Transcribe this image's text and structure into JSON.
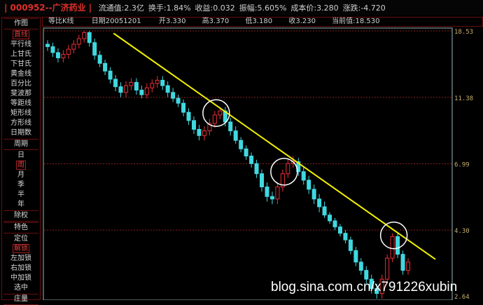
{
  "header": {
    "title": "| 000952--广济药业 |",
    "stats": [
      "流通值:2.3亿",
      "换手:1.84%",
      "收益:0.032",
      "振幅:5.605%",
      "成本价:3.280",
      "涨跌:-4.720"
    ]
  },
  "infobar": {
    "mode": "等比K线",
    "date": "日期20051201",
    "open": "开3.330",
    "high": "高3.370",
    "low": "低3.180",
    "close": "收3.230",
    "current": "当前值:18.530"
  },
  "sidebar": {
    "items": [
      {
        "label": "作图",
        "type": "hdr"
      },
      {
        "label": "直线",
        "type": "sel"
      },
      {
        "label": "平行线"
      },
      {
        "label": "上甘氏"
      },
      {
        "label": "下甘氏"
      },
      {
        "label": "黄金线"
      },
      {
        "label": "百分比"
      },
      {
        "label": "斐波那"
      },
      {
        "label": "等距线"
      },
      {
        "label": "矩形线"
      },
      {
        "label": "方形线"
      },
      {
        "label": "日期数"
      },
      {
        "label": "周期",
        "type": "hdr"
      },
      {
        "label": "日"
      },
      {
        "label": "周",
        "type": "sel"
      },
      {
        "label": "月"
      },
      {
        "label": "季"
      },
      {
        "label": "半"
      },
      {
        "label": "年"
      },
      {
        "label": "除权",
        "type": "hdr"
      },
      {
        "label": "特色",
        "type": "hdr"
      },
      {
        "label": "定位"
      },
      {
        "label": "解锁",
        "type": "sel"
      },
      {
        "label": "左加锁"
      },
      {
        "label": "右加锁"
      },
      {
        "label": "中加锁"
      },
      {
        "label": "选中"
      },
      {
        "label": "庄量",
        "type": "hdr"
      }
    ]
  },
  "chart_data": {
    "type": "candlestick",
    "scale": "log",
    "y_ticks": [
      "18.53",
      "11.38",
      "6.99",
      "4.30",
      "2.64"
    ],
    "ylim": [
      2.64,
      18.53
    ],
    "colors": {
      "up": "#e8303a",
      "down": "#40d8e0",
      "trendline": "#f0f000",
      "grid": "#8a2020",
      "axis": "#9ab8b8"
    },
    "ohlc": [
      [
        16.8,
        17.3,
        16.0,
        16.5
      ],
      [
        16.5,
        17.0,
        15.3,
        15.8
      ],
      [
        15.8,
        16.3,
        14.7,
        15.2
      ],
      [
        15.2,
        16.1,
        14.7,
        15.6
      ],
      [
        15.6,
        16.7,
        15.1,
        16.2
      ],
      [
        16.2,
        17.3,
        15.7,
        16.8
      ],
      [
        16.8,
        18.0,
        16.3,
        17.5
      ],
      [
        17.5,
        18.5,
        17.0,
        18.3
      ],
      [
        18.3,
        18.5,
        16.5,
        17.0
      ],
      [
        17.0,
        17.5,
        15.0,
        15.5
      ],
      [
        15.5,
        16.0,
        14.2,
        14.6
      ],
      [
        14.6,
        15.0,
        13.4,
        13.8
      ],
      [
        13.8,
        14.2,
        12.6,
        13.0
      ],
      [
        13.0,
        13.4,
        11.9,
        12.3
      ],
      [
        12.3,
        12.7,
        11.4,
        11.8
      ],
      [
        11.8,
        12.8,
        11.4,
        12.4
      ],
      [
        12.4,
        13.1,
        12.0,
        12.7
      ],
      [
        12.7,
        13.1,
        11.6,
        12.0
      ],
      [
        12.0,
        12.4,
        11.3,
        11.6
      ],
      [
        11.6,
        12.6,
        11.3,
        12.2
      ],
      [
        12.2,
        13.0,
        11.8,
        12.6
      ],
      [
        12.6,
        13.3,
        12.2,
        12.9
      ],
      [
        12.9,
        13.3,
        12.0,
        12.4
      ],
      [
        12.4,
        12.8,
        11.4,
        11.8
      ],
      [
        11.8,
        12.2,
        11.0,
        11.3
      ],
      [
        11.3,
        11.6,
        10.6,
        10.9
      ],
      [
        10.9,
        11.2,
        9.9,
        10.2
      ],
      [
        10.2,
        10.5,
        9.3,
        9.6
      ],
      [
        9.6,
        9.9,
        8.7,
        9.0
      ],
      [
        9.0,
        9.3,
        8.3,
        8.6
      ],
      [
        8.6,
        9.2,
        8.3,
        8.9
      ],
      [
        8.9,
        9.7,
        8.6,
        9.4
      ],
      [
        9.4,
        10.3,
        9.1,
        10.0
      ],
      [
        10.0,
        10.6,
        9.7,
        10.3
      ],
      [
        10.3,
        10.6,
        9.2,
        9.5
      ],
      [
        9.5,
        9.8,
        8.6,
        8.9
      ],
      [
        8.9,
        9.2,
        8.1,
        8.3
      ],
      [
        8.3,
        8.5,
        7.6,
        7.8
      ],
      [
        7.8,
        8.0,
        7.2,
        7.4
      ],
      [
        7.4,
        7.6,
        6.8,
        7.0
      ],
      [
        7.0,
        7.2,
        6.3,
        6.5
      ],
      [
        6.5,
        6.7,
        5.7,
        5.9
      ],
      [
        5.9,
        6.1,
        5.3,
        5.5
      ],
      [
        5.5,
        5.7,
        5.2,
        5.4
      ],
      [
        5.4,
        6.1,
        5.2,
        5.9
      ],
      [
        5.9,
        6.7,
        5.7,
        6.5
      ],
      [
        6.5,
        7.2,
        6.3,
        7.0
      ],
      [
        7.0,
        7.4,
        6.8,
        7.1
      ],
      [
        7.1,
        7.3,
        6.4,
        6.6
      ],
      [
        6.6,
        6.8,
        6.0,
        6.2
      ],
      [
        6.2,
        6.4,
        5.6,
        5.8
      ],
      [
        5.8,
        6.0,
        5.2,
        5.4
      ],
      [
        5.4,
        5.6,
        4.9,
        5.1
      ],
      [
        5.1,
        5.3,
        4.7,
        4.8
      ],
      [
        4.8,
        4.9,
        4.5,
        4.6
      ],
      [
        4.6,
        4.7,
        4.3,
        4.4
      ],
      [
        4.4,
        4.5,
        4.1,
        4.2
      ],
      [
        4.2,
        4.3,
        3.9,
        4.0
      ],
      [
        4.0,
        4.1,
        3.6,
        3.7
      ],
      [
        3.7,
        3.8,
        3.3,
        3.4
      ],
      [
        3.4,
        3.5,
        3.1,
        3.2
      ],
      [
        3.2,
        3.3,
        2.9,
        3.0
      ],
      [
        3.0,
        3.1,
        2.7,
        2.8
      ],
      [
        2.8,
        2.9,
        2.6,
        2.7
      ],
      [
        2.7,
        3.1,
        2.6,
        3.0
      ],
      [
        3.0,
        3.6,
        2.9,
        3.5
      ],
      [
        3.5,
        4.2,
        3.4,
        4.1
      ],
      [
        4.1,
        4.2,
        3.5,
        3.6
      ],
      [
        3.6,
        3.7,
        3.1,
        3.2
      ],
      [
        3.2,
        3.5,
        3.1,
        3.4
      ]
    ],
    "trendline": {
      "from_price": 18.2,
      "to_price": 3.47
    },
    "circled_candles": [
      32,
      45,
      66
    ]
  },
  "watermark": "blog.sina.com.cn/x791226xubin"
}
